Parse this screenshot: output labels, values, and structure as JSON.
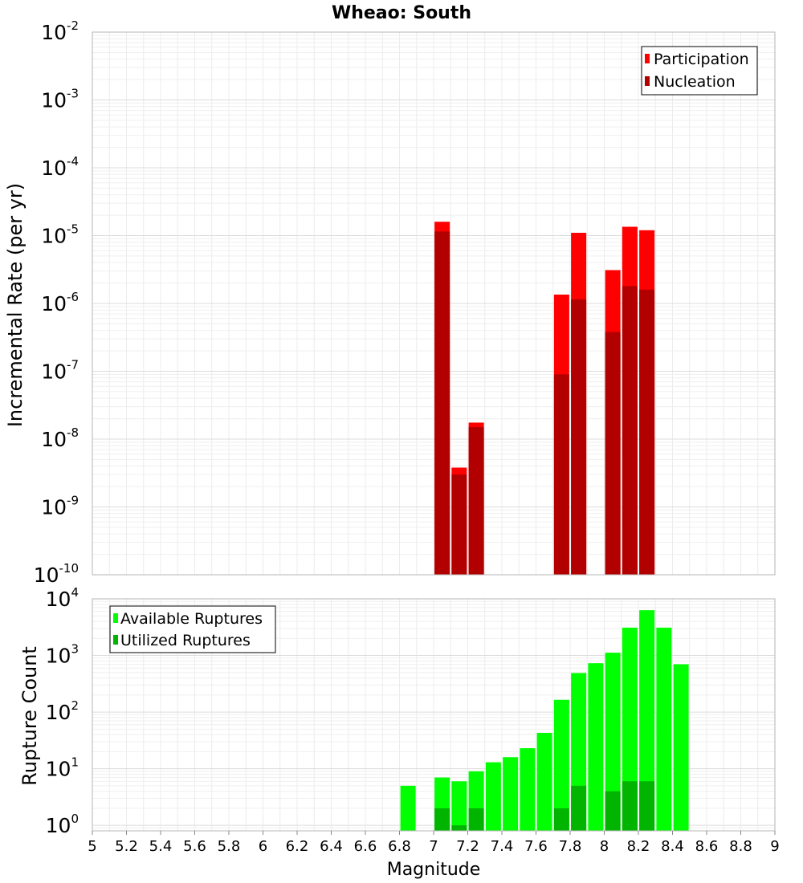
{
  "chart_data": [
    {
      "type": "bar",
      "title": "Wheao: South",
      "xlabel": "",
      "ylabel": "Incremental Rate (per yr)",
      "y_scale": "log",
      "ylim": [
        1e-10,
        0.01
      ],
      "y_ticks": [
        {
          "base": "10",
          "exp": "-10",
          "value": 1e-10
        },
        {
          "base": "10",
          "exp": "-9",
          "value": 1e-09
        },
        {
          "base": "10",
          "exp": "-8",
          "value": 1e-08
        },
        {
          "base": "10",
          "exp": "-7",
          "value": 1e-07
        },
        {
          "base": "10",
          "exp": "-6",
          "value": 1e-06
        },
        {
          "base": "10",
          "exp": "-5",
          "value": 1e-05
        },
        {
          "base": "10",
          "exp": "-4",
          "value": 0.0001
        },
        {
          "base": "10",
          "exp": "-3",
          "value": 0.001
        },
        {
          "base": "10",
          "exp": "-2",
          "value": 0.01
        }
      ],
      "xlim": [
        5,
        9
      ],
      "grid": true,
      "legend_position": "top-right",
      "series": [
        {
          "name": "Participation",
          "color": "#ff0000",
          "x": [
            7.05,
            7.15,
            7.25,
            7.75,
            7.85,
            8.05,
            8.15,
            8.25
          ],
          "values": [
            1.6e-05,
            3.8e-09,
            1.75e-08,
            1.35e-06,
            1.1e-05,
            3.1e-06,
            1.35e-05,
            1.2e-05
          ]
        },
        {
          "name": "Nucleation",
          "color": "#b20000",
          "x": [
            7.05,
            7.15,
            7.25,
            7.75,
            7.85,
            8.05,
            8.15,
            8.25
          ],
          "values": [
            1.15e-05,
            3e-09,
            1.5e-08,
            9e-08,
            1.15e-06,
            3.8e-07,
            1.8e-06,
            1.6e-06
          ]
        }
      ]
    },
    {
      "type": "bar",
      "title": "",
      "xlabel": "Magnitude",
      "ylabel": "Rupture Count",
      "y_scale": "log",
      "ylim": [
        0.8,
        10000
      ],
      "y_ticks": [
        {
          "base": "10",
          "exp": "0",
          "value": 1
        },
        {
          "base": "10",
          "exp": "1",
          "value": 10
        },
        {
          "base": "10",
          "exp": "2",
          "value": 100
        },
        {
          "base": "10",
          "exp": "3",
          "value": 1000
        },
        {
          "base": "10",
          "exp": "4",
          "value": 10000
        }
      ],
      "xlim": [
        5,
        9
      ],
      "x_ticks": [
        "5",
        "5.2",
        "5.4",
        "5.6",
        "5.8",
        "6",
        "6.2",
        "6.4",
        "6.6",
        "6.8",
        "7",
        "7.2",
        "7.4",
        "7.6",
        "7.8",
        "8",
        "8.2",
        "8.4",
        "8.6",
        "8.8",
        "9"
      ],
      "grid": true,
      "legend_position": "top-left",
      "series": [
        {
          "name": "Available Ruptures",
          "color": "#00ff00",
          "x": [
            6.85,
            7.05,
            7.15,
            7.25,
            7.35,
            7.45,
            7.55,
            7.65,
            7.75,
            7.85,
            7.95,
            8.05,
            8.15,
            8.25,
            8.35,
            8.45
          ],
          "values": [
            5,
            7,
            6,
            9,
            13,
            16,
            23,
            43,
            165,
            490,
            730,
            1120,
            3100,
            6300,
            3100,
            700
          ]
        },
        {
          "name": "Utilized Ruptures",
          "color": "#00b400",
          "x": [
            7.05,
            7.15,
            7.25,
            7.75,
            7.85,
            8.05,
            8.15,
            8.25
          ],
          "values": [
            2,
            1,
            2,
            2,
            5,
            4,
            6,
            6
          ]
        }
      ]
    }
  ]
}
